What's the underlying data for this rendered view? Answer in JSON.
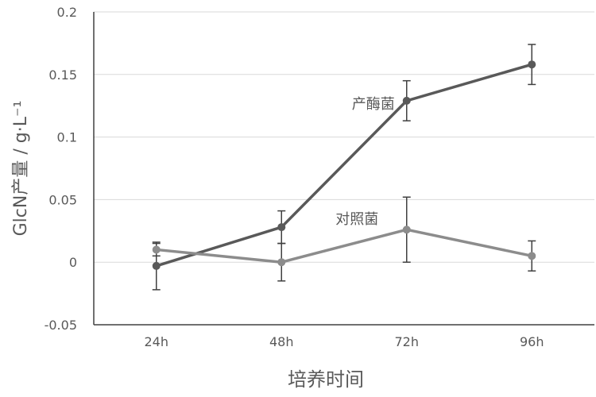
{
  "chart_data": {
    "type": "line",
    "title": "",
    "xlabel": "培养时间",
    "ylabel": "GlcN产量 / g·L⁻¹",
    "categories": [
      "24h",
      "48h",
      "72h",
      "96h"
    ],
    "ylim": [
      -0.05,
      0.2
    ],
    "yticks": [
      "-0.05",
      "0",
      "0.05",
      "0.1",
      "0.15",
      "0.2"
    ],
    "grid": true,
    "legend": "none",
    "series": [
      {
        "name": "产酶菌",
        "values": [
          -0.003,
          0.028,
          0.129,
          0.158
        ],
        "errors": [
          0.019,
          0.013,
          0.016,
          0.016
        ],
        "color": "#595959"
      },
      {
        "name": "对照菌",
        "values": [
          0.01,
          0.0,
          0.026,
          0.005
        ],
        "errors": [
          0.005,
          0.015,
          0.026,
          0.012
        ],
        "color": "#8c8c8c"
      }
    ]
  }
}
